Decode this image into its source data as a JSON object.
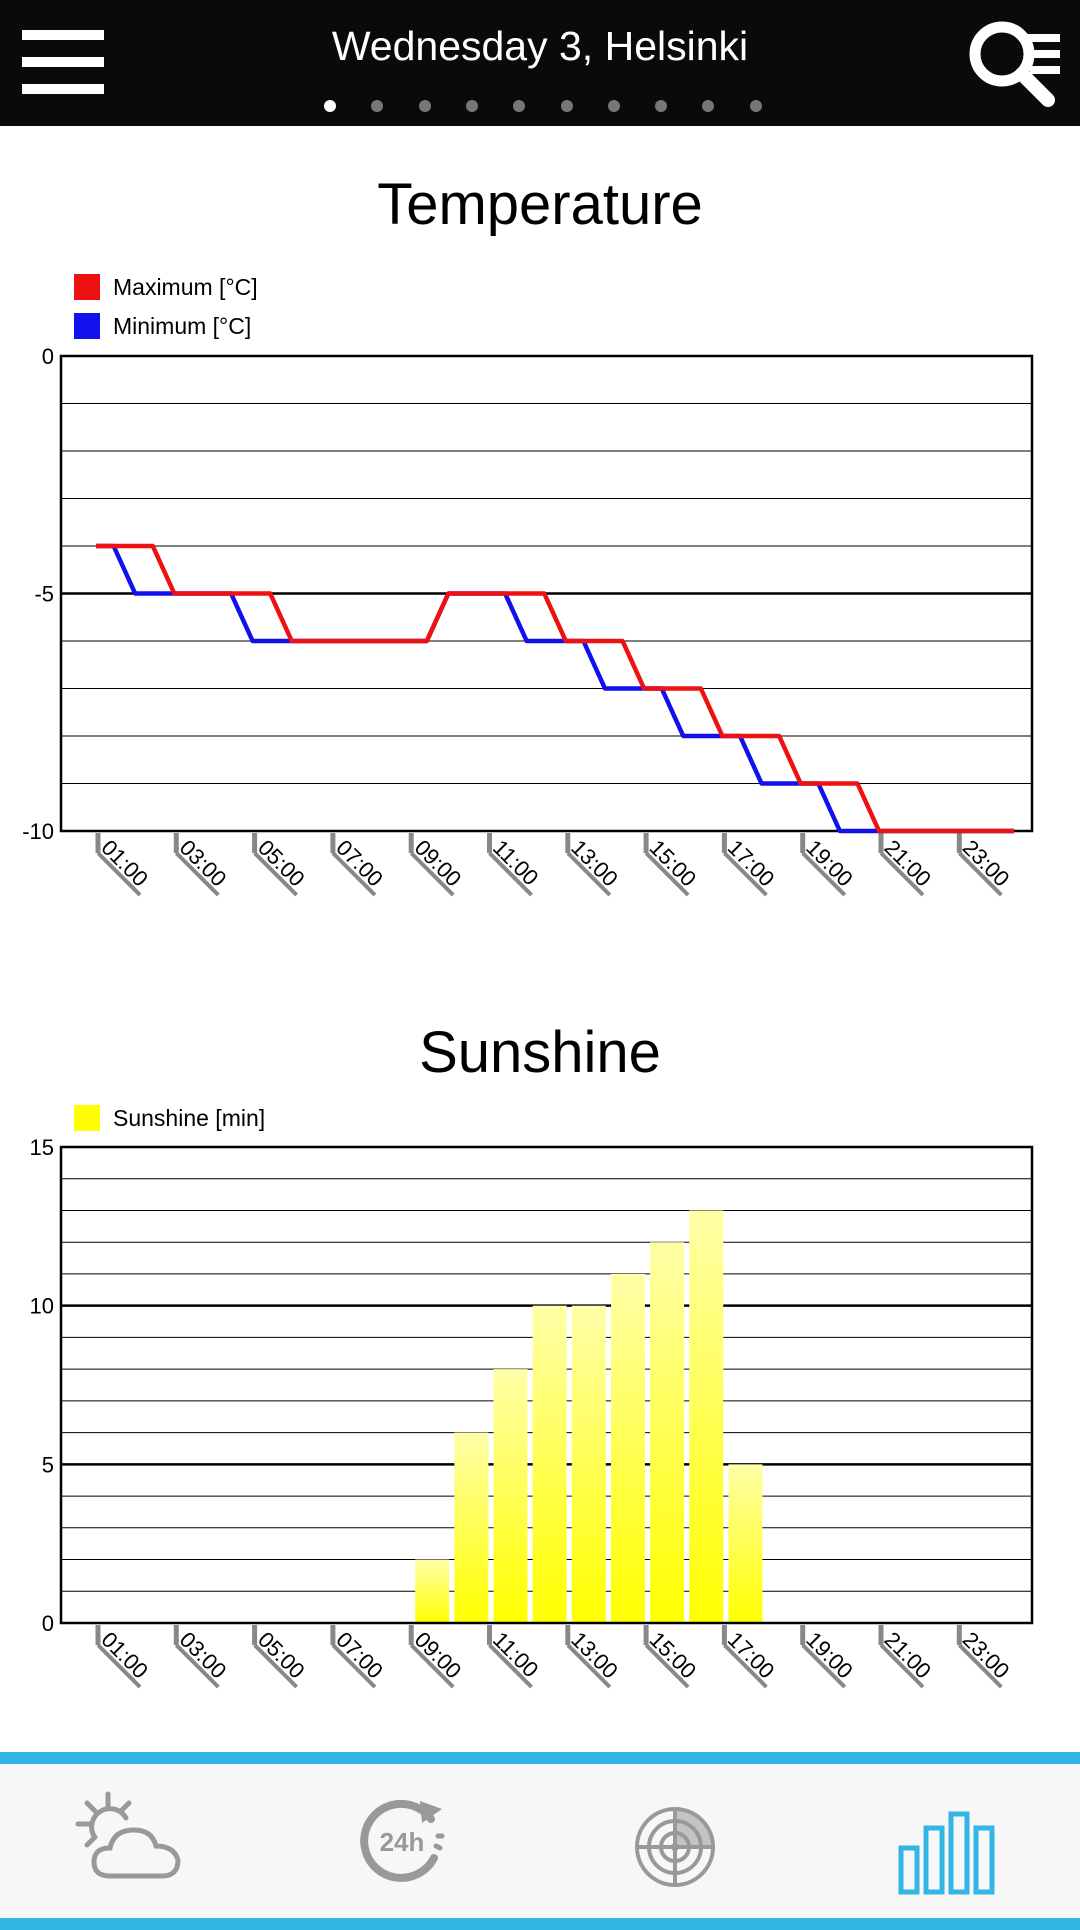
{
  "header": {
    "title": "Wednesday 3, Helsinki",
    "page_count": 10,
    "active_page": 1
  },
  "colors": {
    "header_bg": "#0a0a0a",
    "accent": "#33b5e5",
    "nav_inactive": "#999999",
    "max_line": "#ee1111",
    "min_line": "#1111ee",
    "sunshine_bar": "#ffff00"
  },
  "chart_data": [
    {
      "type": "line",
      "title": "Temperature",
      "x": [
        "01:00",
        "02:00",
        "03:00",
        "04:00",
        "05:00",
        "06:00",
        "07:00",
        "08:00",
        "09:00",
        "10:00",
        "11:00",
        "12:00",
        "13:00",
        "14:00",
        "15:00",
        "16:00",
        "17:00",
        "18:00",
        "19:00",
        "20:00",
        "21:00",
        "22:00",
        "23:00",
        "24:00"
      ],
      "x_tick_labels": [
        "01:00",
        "03:00",
        "05:00",
        "07:00",
        "09:00",
        "11:00",
        "13:00",
        "15:00",
        "17:00",
        "19:00",
        "21:00",
        "23:00"
      ],
      "series": [
        {
          "name": "Maximum [°C]",
          "color": "#ee1111",
          "values": [
            -4,
            -4,
            -5,
            -5,
            -5,
            -6,
            -6,
            -6,
            -6,
            -5,
            -5,
            -5,
            -6,
            -6,
            -7,
            -7,
            -8,
            -8,
            -9,
            -9,
            -10,
            -10,
            -10,
            -10
          ]
        },
        {
          "name": "Minimum [°C]",
          "color": "#1111ee",
          "values": [
            -4,
            -5,
            -5,
            -5,
            -6,
            -6,
            -6,
            -6,
            -6,
            -5,
            -5,
            -6,
            -6,
            -7,
            -7,
            -8,
            -8,
            -9,
            -9,
            -10,
            -10,
            -10,
            -10,
            -10
          ]
        }
      ],
      "ylim": [
        -10,
        0
      ],
      "y_tick_labels": [
        "0",
        "-5",
        "-10"
      ],
      "grid": true,
      "legend": "top-left"
    },
    {
      "type": "bar",
      "title": "Sunshine",
      "categories": [
        "01:00",
        "02:00",
        "03:00",
        "04:00",
        "05:00",
        "06:00",
        "07:00",
        "08:00",
        "09:00",
        "10:00",
        "11:00",
        "12:00",
        "13:00",
        "14:00",
        "15:00",
        "16:00",
        "17:00",
        "18:00",
        "19:00",
        "20:00",
        "21:00",
        "22:00",
        "23:00",
        "24:00"
      ],
      "x_tick_labels": [
        "01:00",
        "03:00",
        "05:00",
        "07:00",
        "09:00",
        "11:00",
        "13:00",
        "15:00",
        "17:00",
        "19:00",
        "21:00",
        "23:00"
      ],
      "series": [
        {
          "name": "Sunshine [min]",
          "color": "#ffff00",
          "values": [
            0,
            0,
            0,
            0,
            0,
            0,
            0,
            0,
            2,
            6,
            8,
            10,
            10,
            11,
            12,
            13,
            5,
            0,
            0,
            0,
            0,
            0,
            0,
            0
          ]
        }
      ],
      "ylim": [
        0,
        15
      ],
      "y_tick_labels": [
        "15",
        "10",
        "5",
        "0"
      ],
      "grid": true,
      "legend": "top-left"
    }
  ],
  "bottom_nav": {
    "items": [
      {
        "icon": "partly-cloudy-icon",
        "active": false
      },
      {
        "icon": "24h-forecast-icon",
        "active": false
      },
      {
        "icon": "radar-icon",
        "active": false
      },
      {
        "icon": "bar-chart-icon",
        "active": true
      }
    ]
  }
}
